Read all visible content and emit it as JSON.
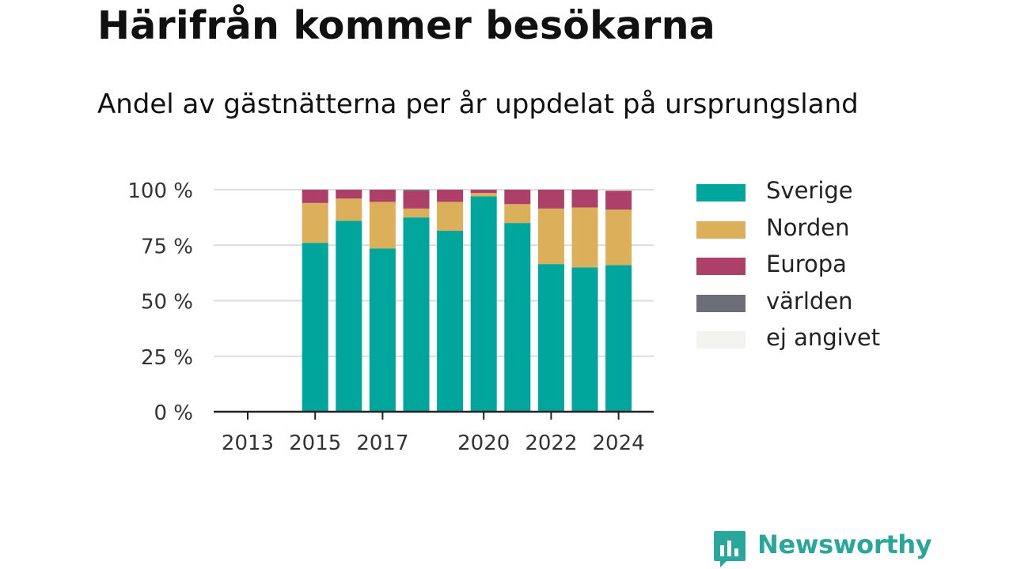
{
  "title": "Härifrån kommer besökarna",
  "subtitle": "Andel av gästnätterna per år uppdelat på ursprungsland",
  "brand": {
    "name": "Newsworthy",
    "color": "#2aa79b"
  },
  "chart_data": {
    "type": "bar",
    "stacked": true,
    "x": [
      2013,
      2014,
      2015,
      2016,
      2017,
      2018,
      2019,
      2020,
      2021,
      2022,
      2023,
      2024
    ],
    "x_tick_labels": [
      "2013",
      "2015",
      "2017",
      "2020",
      "2022",
      "2024"
    ],
    "y_tick_labels": [
      "0 %",
      "25 %",
      "50 %",
      "75 %",
      "100 %"
    ],
    "ylim": [
      0,
      100
    ],
    "grid": true,
    "legend_position": "right",
    "series": [
      {
        "name": "Sverige",
        "color": "#00a69c",
        "values": [
          null,
          null,
          76,
          86,
          73.5,
          87.5,
          81.5,
          97,
          85,
          66.5,
          65,
          66
        ]
      },
      {
        "name": "Norden",
        "color": "#dcaf5a",
        "values": [
          null,
          null,
          18,
          10,
          21,
          4,
          13,
          1.5,
          8.5,
          25,
          27,
          25
        ]
      },
      {
        "name": "Europa",
        "color": "#ad4068",
        "values": [
          null,
          null,
          6,
          4,
          5.5,
          8,
          5.5,
          1.5,
          6.5,
          8.5,
          8,
          8.5
        ]
      },
      {
        "name": "världen",
        "color": "#6e6e78",
        "values": [
          null,
          null,
          0,
          0,
          0,
          0.5,
          0,
          0,
          0,
          0,
          0,
          0
        ]
      },
      {
        "name": "ej angivet",
        "color": "#f3f3f0",
        "values": [
          null,
          null,
          0,
          0,
          0,
          0,
          0,
          0,
          0,
          0,
          0,
          0
        ]
      }
    ]
  }
}
